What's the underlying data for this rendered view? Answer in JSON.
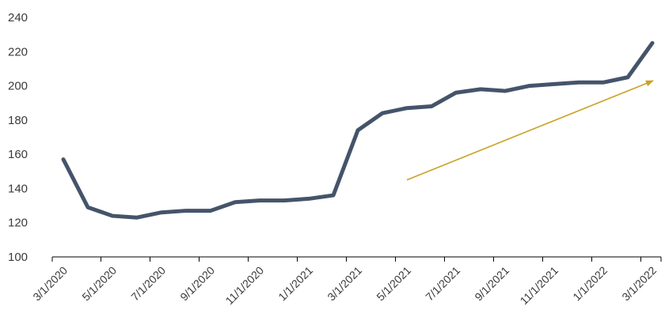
{
  "chart_data": {
    "type": "line",
    "x": [
      "3/1/2020",
      "4/1/2020",
      "5/1/2020",
      "6/1/2020",
      "7/1/2020",
      "8/1/2020",
      "9/1/2020",
      "10/1/2020",
      "11/1/2020",
      "12/1/2020",
      "1/1/2021",
      "2/1/2021",
      "3/1/2021",
      "4/1/2021",
      "5/1/2021",
      "6/1/2021",
      "7/1/2021",
      "8/1/2021",
      "9/1/2021",
      "10/1/2021",
      "11/1/2021",
      "12/1/2021",
      "1/1/2022",
      "2/1/2022",
      "3/1/2022"
    ],
    "x_tick_labels": [
      "3/1/2020",
      "5/1/2020",
      "7/1/2020",
      "9/1/2020",
      "11/1/2020",
      "1/1/2021",
      "3/1/2021",
      "5/1/2021",
      "7/1/2021",
      "9/1/2021",
      "11/1/2021",
      "1/1/2022",
      "3/1/2022"
    ],
    "series": [
      {
        "values": [
          157,
          129,
          124,
          123,
          126,
          127,
          127,
          132,
          133,
          133,
          134,
          136,
          174,
          184,
          187,
          188,
          196,
          198,
          197,
          200,
          201,
          202,
          202,
          205,
          225
        ],
        "color": "#44546a"
      }
    ],
    "yticks": [
      100,
      120,
      140,
      160,
      180,
      200,
      220,
      240
    ],
    "ylim": [
      100,
      240
    ],
    "title": "",
    "xlabel": "",
    "ylabel": "",
    "grid": false,
    "legend": "none",
    "annotations": [
      {
        "type": "arrow",
        "from": {
          "x": "5/1/2021",
          "y": 145
        },
        "to": {
          "x": "3/1/2022",
          "y": 203
        },
        "color": "#c9a227"
      }
    ]
  }
}
